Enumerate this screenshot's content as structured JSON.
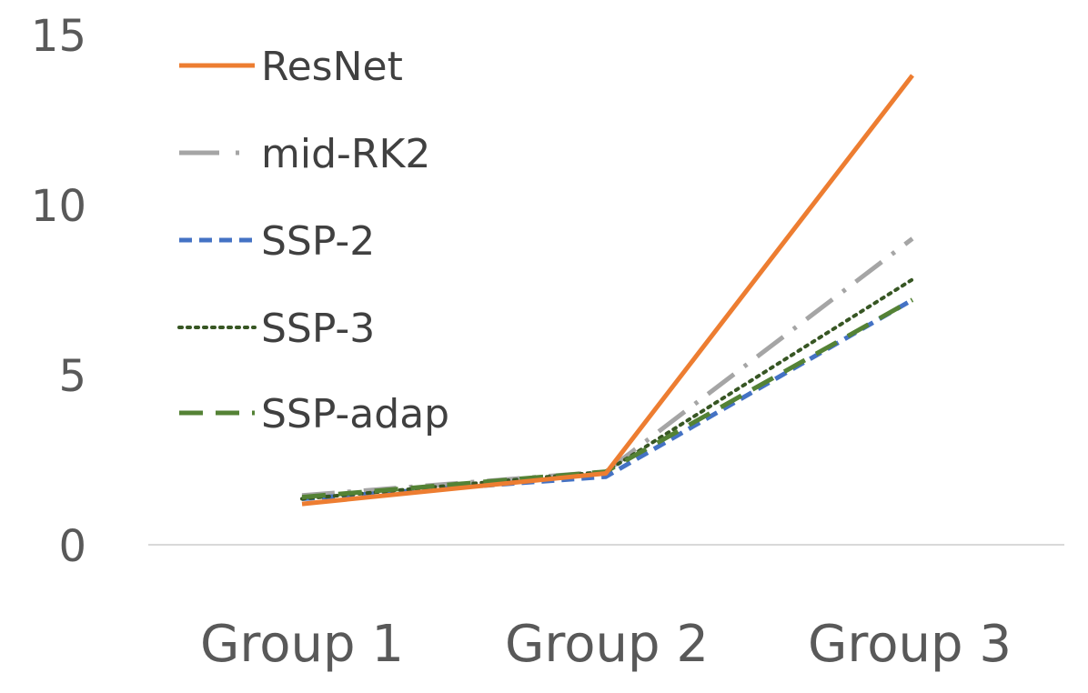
{
  "chart_data": {
    "type": "line",
    "categories": [
      "Group 1",
      "Group 2",
      "Group 3"
    ],
    "yticks": [
      "0",
      "5",
      "10",
      "15"
    ],
    "ylim": [
      0,
      15
    ],
    "grid": false,
    "legend_position": "top-left",
    "series": [
      {
        "name": "ResNet",
        "values": [
          1.2,
          2.1,
          13.8
        ],
        "color": "#ED7D31",
        "style": "solid"
      },
      {
        "name": "mid-RK2",
        "values": [
          1.45,
          2.15,
          9.0
        ],
        "color": "#A5A5A5",
        "style": "dash-dot"
      },
      {
        "name": "SSP-2",
        "values": [
          1.35,
          2.0,
          7.2
        ],
        "color": "#4472C4",
        "style": "dashed"
      },
      {
        "name": "SSP-3",
        "values": [
          1.35,
          2.15,
          7.8
        ],
        "color": "#375623",
        "style": "dotted"
      },
      {
        "name": "SSP-adap",
        "values": [
          1.4,
          2.15,
          7.2
        ],
        "color": "#548235",
        "style": "long-dash"
      }
    ]
  }
}
